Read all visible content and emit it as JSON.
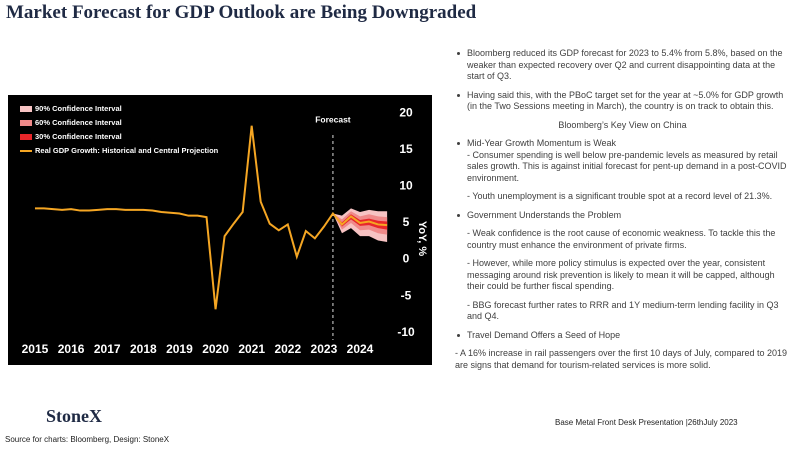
{
  "title": "Market Forecast for GDP Outlook are Being Downgraded",
  "notes": [
    "Bloomberg reduced its GDP forecast for 2023 to 5.4% from 5.8%, based on the weaker than expected recovery over Q2 and current disappointing  data at the start of Q3.",
    "Having said this, with the PBoC target set for the year at ~5.0% for GDP growth (in the Two Sessions meeting in March), the country is on track to obtain this.",
    "Bloomberg’s Key View on China",
    "Mid-Year Growth Momentum is Weak",
    "-  Consumer spending is well below pre-pandemic levels as measured by retail sales growth. This is against initial forecast for pent-up demand in a post-COVID environment.",
    "-  Youth unemployment is a significant trouble spot at a record level of 21.3%.",
    "Government Understands the Problem",
    "-  Weak confidence is the root cause of economic weakness. To tackle this the country must enhance the environment of private firms.",
    "-  However, while more policy stimulus is expected over the year, consistent messaging around risk prevention is likely to mean it will be capped, although their could be further fiscal spending.",
    "-  BBG forecast further rates to RRR and 1Y medium-term lending facility in Q3 and Q4.",
    "Travel Demand Offers a Seed of Hope",
    "- A 16%  increase in rail passengers over the first 10 days of July, compared to 2019 are signs that demand for tourism-related services is more solid."
  ],
  "logo": "StoneX",
  "source": "Source for charts: Bloomberg, Design: StoneX",
  "presentation": "Base Metal Front Desk Presentation  |26thJuly 2023",
  "chart_data": {
    "type": "line",
    "y_label": "YoY, %",
    "x": [
      2015,
      2015.25,
      2015.5,
      2015.75,
      2016,
      2016.25,
      2016.5,
      2016.75,
      2017,
      2017.25,
      2017.5,
      2017.75,
      2018,
      2018.25,
      2018.5,
      2018.75,
      2019,
      2019.25,
      2019.5,
      2019.75,
      2020,
      2020.25,
      2020.5,
      2020.75,
      2021,
      2021.25,
      2021.5,
      2021.75,
      2022,
      2022.25,
      2022.5,
      2022.75,
      2023,
      2023.25,
      2023.5,
      2023.75,
      2024,
      2024.25,
      2024.5,
      2024.75
    ],
    "series": [
      {
        "name": "Real GDP Growth: Historical and Central Projection",
        "color": "#f5a623",
        "values": [
          7.0,
          7.0,
          6.9,
          6.8,
          6.9,
          6.7,
          6.7,
          6.8,
          6.9,
          6.9,
          6.8,
          6.8,
          6.8,
          6.7,
          6.5,
          6.4,
          6.3,
          6.0,
          6.0,
          5.8,
          -6.8,
          3.2,
          4.9,
          6.5,
          18.3,
          7.9,
          4.9,
          4.0,
          4.8,
          0.4,
          3.9,
          2.9,
          4.5,
          6.3,
          4.8,
          5.9,
          5.0,
          5.2,
          4.8,
          4.7
        ]
      }
    ],
    "forecast_x": [
      2023.25,
      2023.5,
      2023.75,
      2024,
      2024.25,
      2024.5,
      2024.75
    ],
    "bands": [
      {
        "name": "90% Confidence Interval",
        "color": "#f7c3c3",
        "lower": [
          6.3,
          3.6,
          4.3,
          3.2,
          3.2,
          2.6,
          2.4
        ],
        "upper": [
          6.3,
          6.0,
          7.0,
          6.5,
          6.8,
          6.6,
          6.6
        ]
      },
      {
        "name": "60% Confidence Interval",
        "color": "#f08a8a",
        "lower": [
          6.3,
          4.1,
          5.0,
          4.0,
          4.1,
          3.6,
          3.4
        ],
        "upper": [
          6.3,
          5.5,
          6.6,
          5.9,
          6.2,
          5.9,
          5.8
        ]
      },
      {
        "name": "30% Confidence Interval",
        "color": "#e8262a",
        "lower": [
          6.3,
          4.5,
          5.5,
          4.6,
          4.7,
          4.3,
          4.1
        ],
        "upper": [
          6.3,
          5.1,
          6.2,
          5.4,
          5.6,
          5.3,
          5.2
        ]
      }
    ],
    "forecast": {
      "x": 2023.25,
      "label": "Forecast"
    },
    "xlim": [
      2014.53,
      2024.83
    ],
    "xticks": [
      2015,
      2016,
      2017,
      2018,
      2019,
      2020,
      2021,
      2022,
      2023,
      2024
    ],
    "ylim": [
      -11,
      22.5
    ],
    "yticks": [
      -10,
      -5,
      0,
      5,
      10,
      15,
      20
    ],
    "grid": false,
    "legend": "top-left",
    "background": "#000000"
  }
}
